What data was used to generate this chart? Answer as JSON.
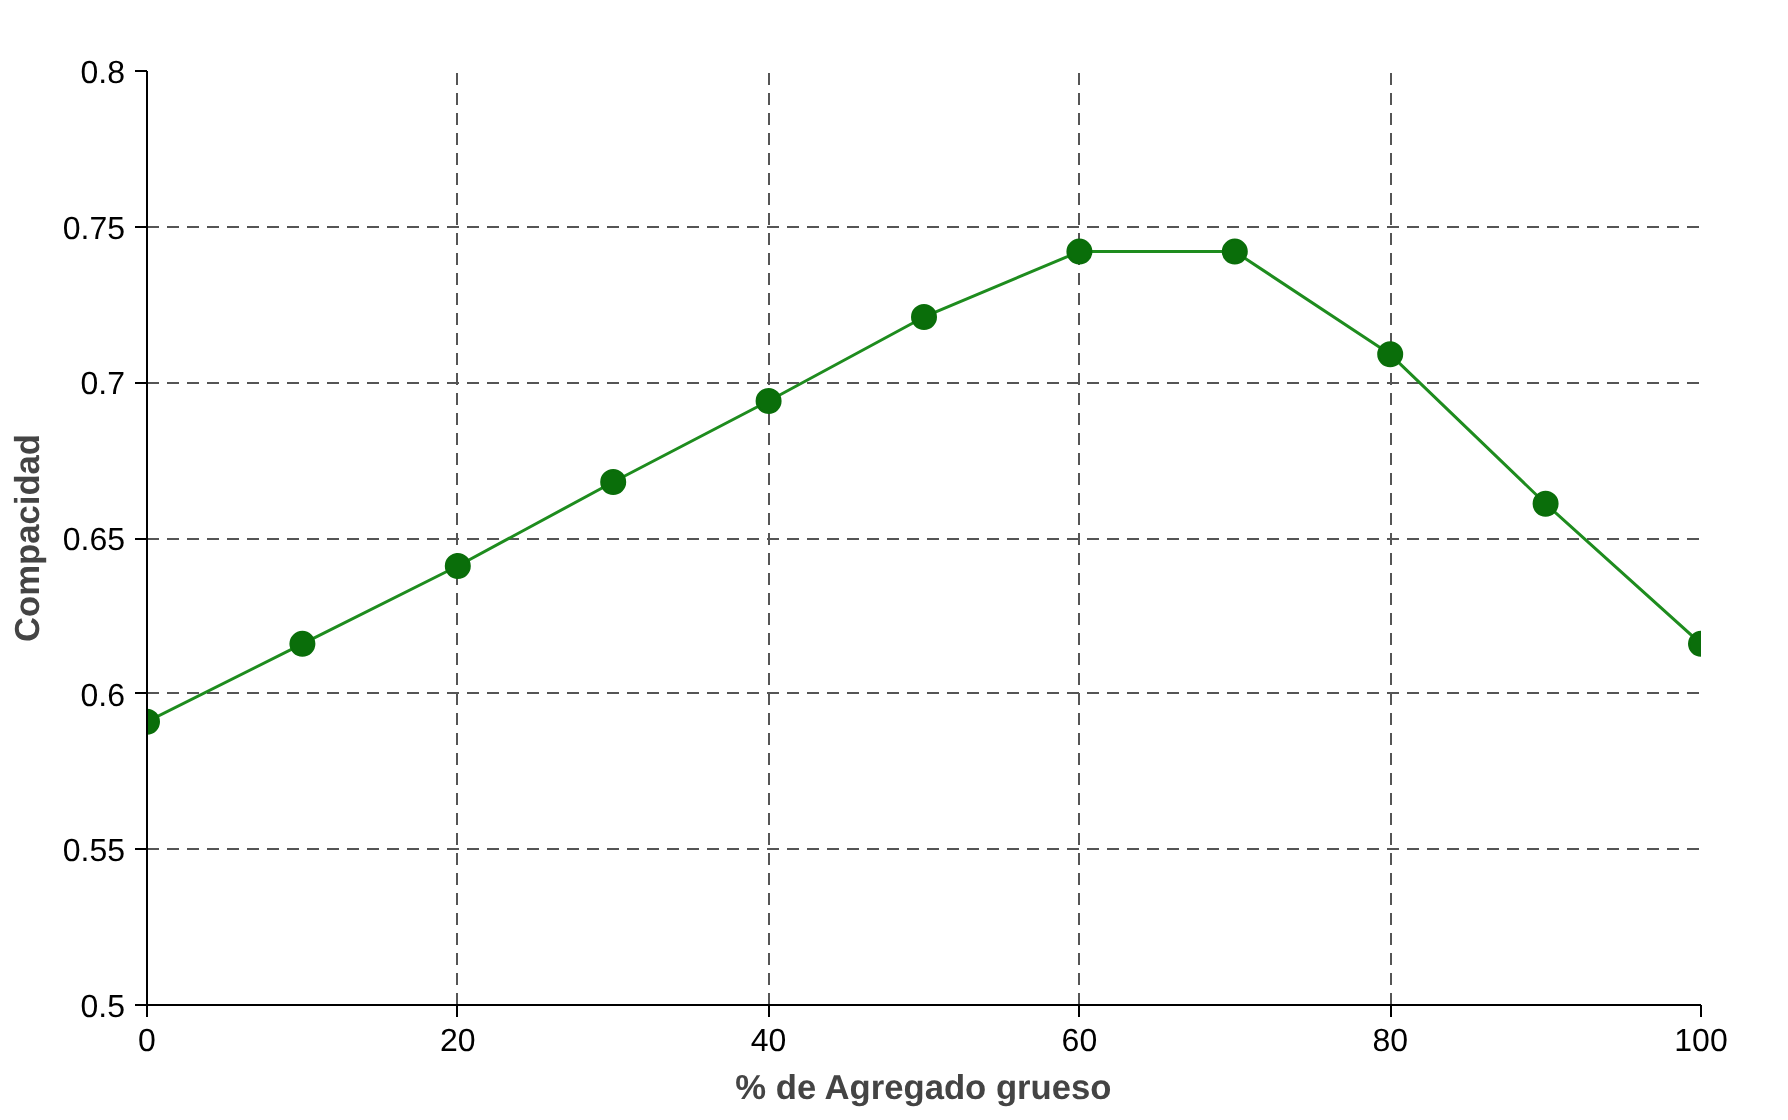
{
  "chart_data": {
    "type": "line",
    "xlabel": "% de Agregado grueso",
    "ylabel": "Compacidad",
    "x": [
      0,
      10,
      20,
      30,
      40,
      50,
      60,
      70,
      80,
      90,
      100
    ],
    "series": [
      {
        "color": "#1e8c1e",
        "values": [
          0.591,
          0.616,
          0.641,
          0.668,
          0.694,
          0.721,
          0.742,
          0.742,
          0.709,
          0.661,
          0.616
        ]
      }
    ],
    "xlim": [
      0,
      100
    ],
    "xticks": [
      0,
      20,
      40,
      60,
      80,
      100
    ],
    "ylim": [
      0.5,
      0.8
    ],
    "yticks": [
      0.5,
      0.55,
      0.6,
      0.65,
      0.7,
      0.75,
      0.8
    ],
    "grid": true,
    "marker": "circle",
    "line_style": "solid"
  }
}
